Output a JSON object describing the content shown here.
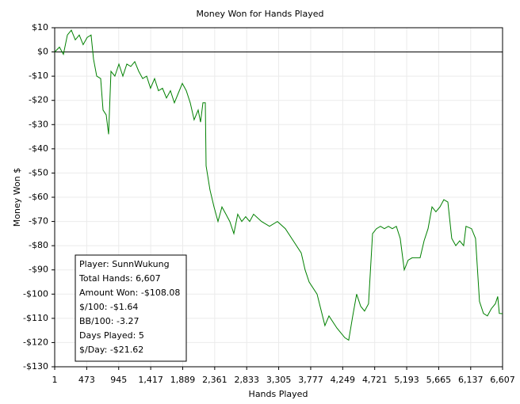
{
  "chart_data": {
    "type": "line",
    "title": "Money Won for Hands Played",
    "x_label": "Hands Played",
    "y_label": "Money Won $",
    "xlim": [
      1,
      6607
    ],
    "ylim": [
      -130,
      10
    ],
    "xticks": [
      1,
      473,
      945,
      {
        "value": 1417,
        "label": "1,417"
      },
      {
        "value": 1889,
        "label": "1,889"
      },
      {
        "value": 2361,
        "label": "2,361"
      },
      {
        "value": 2833,
        "label": "2,833"
      },
      {
        "value": 3305,
        "label": "3,305"
      },
      {
        "value": 3777,
        "label": "3,777"
      },
      {
        "value": 4249,
        "label": "4,249"
      },
      {
        "value": 4721,
        "label": "4,721"
      },
      {
        "value": 5193,
        "label": "5,193"
      },
      {
        "value": 5665,
        "label": "5,665"
      },
      {
        "value": 6137,
        "label": "6,137"
      },
      {
        "value": 6607,
        "label": "6,607"
      }
    ],
    "yticks": [
      {
        "value": 10,
        "label": "$10"
      },
      {
        "value": 0,
        "label": "$0"
      },
      {
        "value": -10,
        "label": "-$10"
      },
      {
        "value": -20,
        "label": "-$20"
      },
      {
        "value": -30,
        "label": "-$30"
      },
      {
        "value": -40,
        "label": "-$40"
      },
      {
        "value": -50,
        "label": "-$50"
      },
      {
        "value": -60,
        "label": "-$60"
      },
      {
        "value": -70,
        "label": "-$70"
      },
      {
        "value": -80,
        "label": "-$80"
      },
      {
        "value": -90,
        "label": "-$90"
      },
      {
        "value": -100,
        "label": "-$100"
      },
      {
        "value": -110,
        "label": "-$110"
      },
      {
        "value": -120,
        "label": "-$120"
      },
      {
        "value": -130,
        "label": "-$130"
      }
    ],
    "grid": true,
    "series": [
      {
        "name": "Money Won",
        "color": "#008000",
        "x": [
          1,
          71,
          130,
          188,
          246,
          305,
          363,
          421,
          480,
          538,
          574,
          621,
          679,
          714,
          761,
          796,
          831,
          889,
          948,
          1006,
          1065,
          1123,
          1182,
          1240,
          1299,
          1357,
          1415,
          1474,
          1532,
          1591,
          1649,
          1708,
          1766,
          1825,
          1883,
          1942,
          2000,
          2058,
          2117,
          2152,
          2187,
          2222,
          2234,
          2292,
          2351,
          2409,
          2468,
          2526,
          2584,
          2643,
          2701,
          2760,
          2818,
          2877,
          2935,
          3052,
          3169,
          3286,
          3403,
          3520,
          3637,
          3695,
          3754,
          3871,
          3987,
          4046,
          4163,
          4280,
          4338,
          4397,
          4455,
          4514,
          4572,
          4630,
          4689,
          4747,
          4806,
          4864,
          4923,
          4981,
          5040,
          5098,
          5157,
          5215,
          5274,
          5391,
          5449,
          5508,
          5566,
          5624,
          5683,
          5741,
          5800,
          5858,
          5917,
          5975,
          6033,
          6068,
          6150,
          6208,
          6267,
          6325,
          6384,
          6442,
          6501,
          6536,
          6559,
          6607
        ],
        "values": [
          0,
          2,
          -1,
          7,
          9,
          5,
          7,
          3,
          6,
          7,
          -3,
          -10,
          -11,
          -24,
          -26,
          -34,
          -8,
          -10,
          -5,
          -10,
          -5,
          -6,
          -4,
          -8,
          -11,
          -10,
          -15,
          -11,
          -16,
          -15,
          -19,
          -16,
          -21,
          -17,
          -13,
          -16,
          -21,
          -28,
          -24,
          -29,
          -21,
          -21,
          -47,
          -57,
          -64,
          -70,
          -64,
          -67,
          -70,
          -75,
          -67,
          -70,
          -68,
          -70,
          -67,
          -70,
          -72,
          -70,
          -73,
          -78,
          -83,
          -90,
          -95,
          -100,
          -113,
          -109,
          -114,
          -118,
          -119,
          -109,
          -100,
          -105,
          -107,
          -104,
          -75,
          -73,
          -72,
          -73,
          -72,
          -73,
          -72,
          -77,
          -90,
          -86,
          -85,
          -85,
          -78,
          -73,
          -64,
          -66,
          -64,
          -61,
          -62,
          -77,
          -80,
          -78,
          -80,
          -72,
          -73,
          -77,
          -103,
          -108,
          -109,
          -106,
          -104,
          -101,
          -108,
          -108.08
        ]
      }
    ],
    "stats": [
      "Player: SunnWukung",
      "Total Hands: 6,607",
      "Amount Won: -$108.08",
      "$/100: -$1.64",
      "BB/100: -3.27",
      "Days Played: 5",
      "$/Day: -$21.62"
    ]
  }
}
